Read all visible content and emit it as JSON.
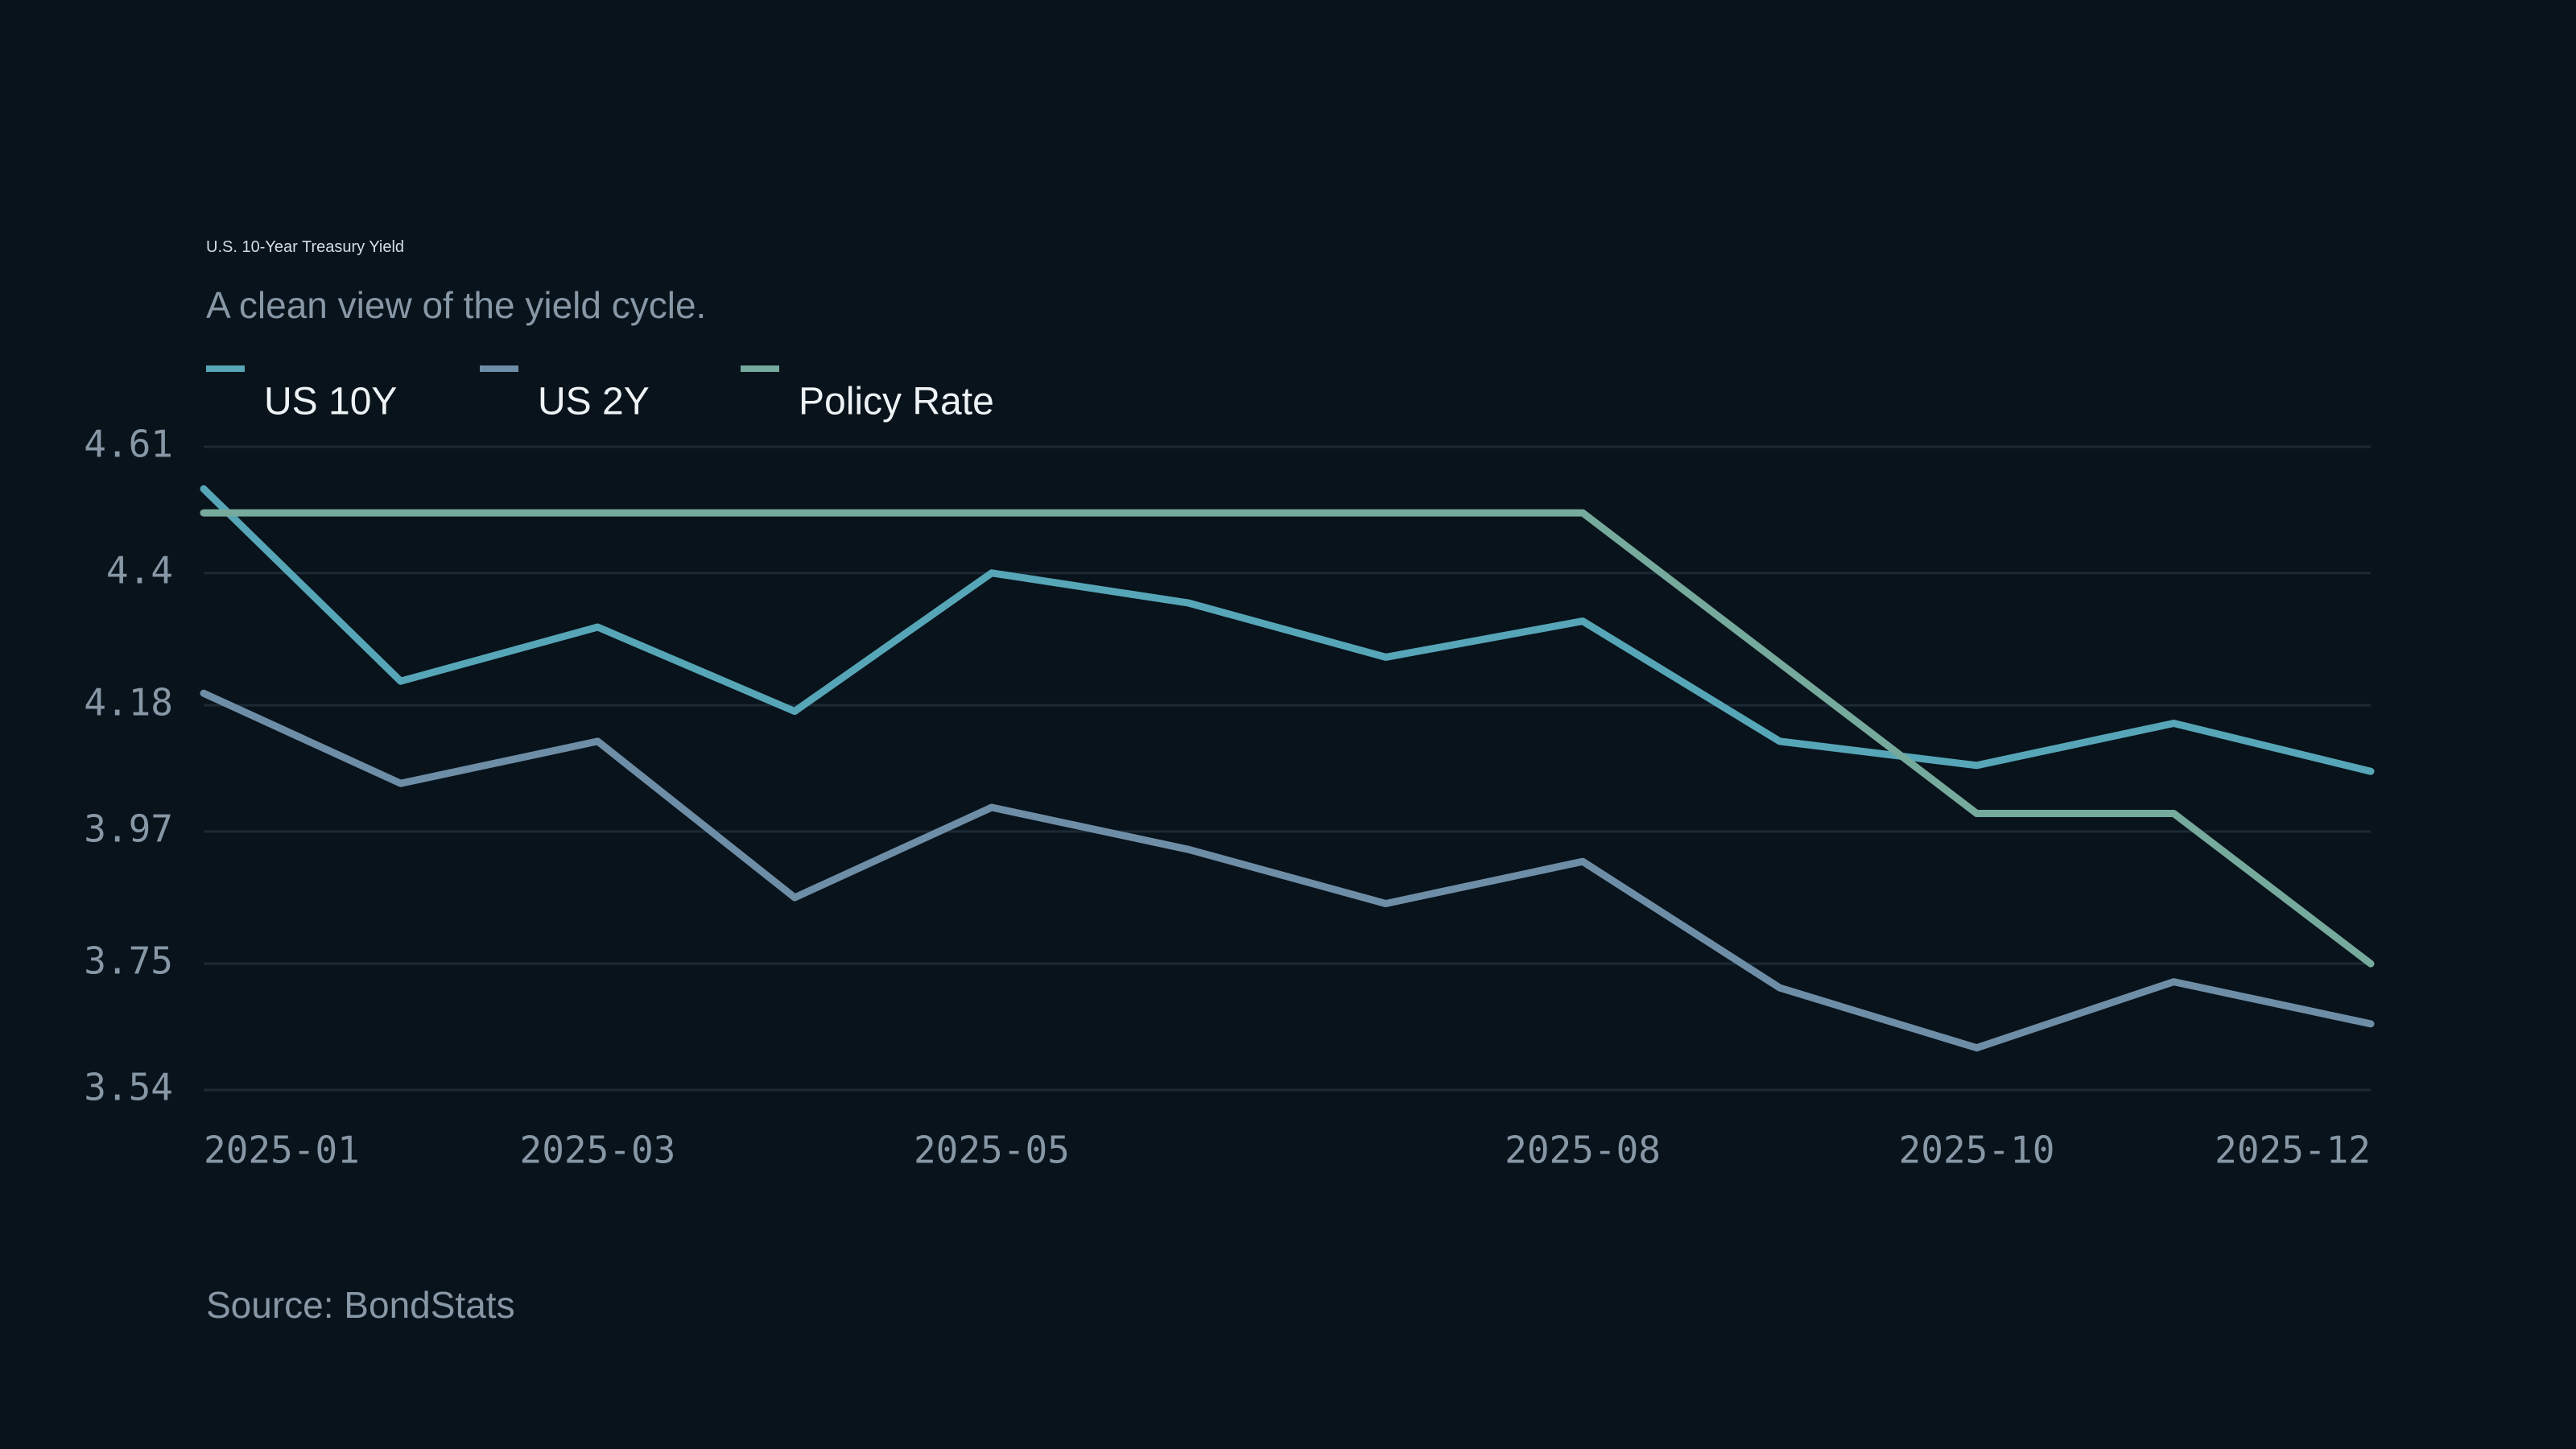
{
  "chart_data": {
    "type": "line",
    "title": "U.S. 10-Year Treasury Yield",
    "subtitle": "A clean view of the yield cycle.",
    "source": "Source: BondStats",
    "x": [
      "2025-01",
      "2025-02",
      "2025-03",
      "2025-04",
      "2025-05",
      "2025-06",
      "2025-07",
      "2025-08",
      "2025-09",
      "2025-10",
      "2025-11",
      "2025-12"
    ],
    "x_tick_labels": [
      "2025-01",
      "2025-03",
      "2025-05",
      "2025-08",
      "2025-10",
      "2025-12"
    ],
    "y_ticks": [
      4.61,
      4.4,
      4.18,
      3.97,
      3.75,
      3.54
    ],
    "y_tick_labels": [
      "4.61",
      "4.4",
      "4.18",
      "3.97",
      "3.75",
      "3.54"
    ],
    "ylim": [
      3.54,
      4.61
    ],
    "grid": true,
    "legend_position": "top-left",
    "series": [
      {
        "name": "US 10Y",
        "color": "#56a6b8",
        "values": [
          4.54,
          4.22,
          4.31,
          4.17,
          4.4,
          4.35,
          4.26,
          4.32,
          4.12,
          4.08,
          4.15,
          4.07
        ]
      },
      {
        "name": "US 2Y",
        "color": "#6e8ea7",
        "values": [
          4.2,
          4.05,
          4.12,
          3.86,
          4.01,
          3.94,
          3.85,
          3.92,
          3.71,
          3.61,
          3.72,
          3.65
        ]
      },
      {
        "name": "Policy Rate",
        "color": "#76aa9c",
        "values": [
          4.5,
          4.5,
          4.5,
          4.5,
          4.5,
          4.5,
          4.5,
          4.5,
          4.25,
          4.0,
          4.0,
          3.75
        ]
      }
    ]
  }
}
